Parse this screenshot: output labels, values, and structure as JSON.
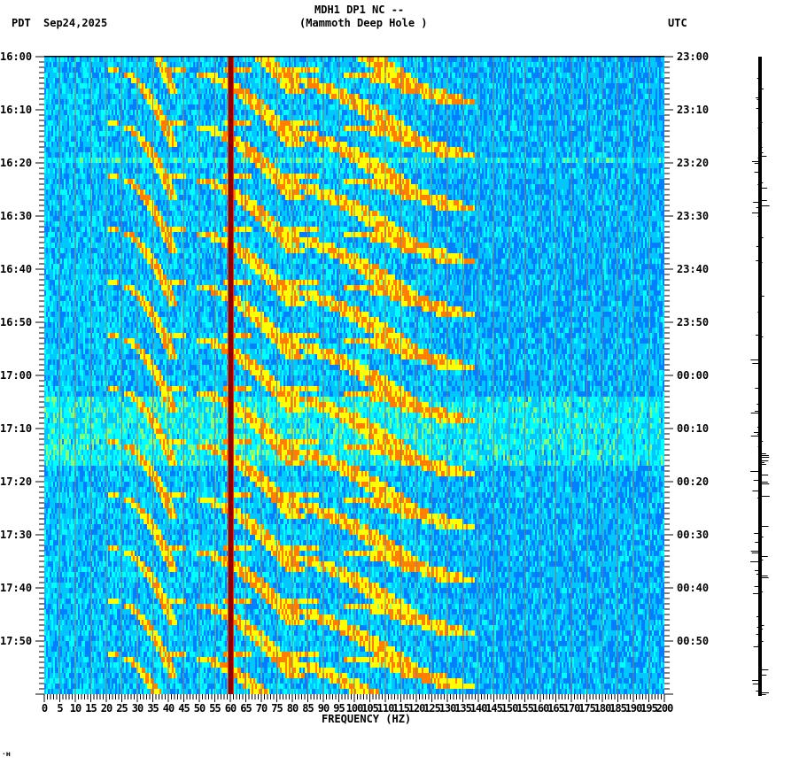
{
  "header": {
    "title_line1": "MDH1 DP1 NC --",
    "title_line2": "(Mammoth Deep Hole )",
    "left_tz": "PDT",
    "date": "Sep24,2025",
    "right_tz": "UTC"
  },
  "footer": {
    "xlabel": "FREQUENCY (HZ)",
    "corner_mark": "·ʜ"
  },
  "colors": {
    "background_noise": "#1f8fff",
    "grid_line": "#808080",
    "line_60hz": "#8b0000",
    "line_60hz_edge": "#ff3000",
    "arc_color": "#d8ff30",
    "arc_peak": "#ffd000",
    "trace": "#000000"
  },
  "chart_data": {
    "type": "heatmap",
    "title": "MDH1 DP1 NC -- (Mammoth Deep Hole )",
    "subtitle": "Spectrogram, Sep24,2025",
    "xlabel": "FREQUENCY (HZ)",
    "ylabel_left": "PDT",
    "ylabel_right": "UTC",
    "xlim": [
      0,
      200
    ],
    "x_tick_step": 5,
    "x_ticks": [
      0,
      5,
      10,
      15,
      20,
      25,
      30,
      35,
      40,
      45,
      50,
      55,
      60,
      65,
      70,
      75,
      80,
      85,
      90,
      95,
      100,
      105,
      110,
      115,
      120,
      125,
      130,
      135,
      140,
      145,
      150,
      155,
      160,
      165,
      170,
      175,
      180,
      185,
      190,
      195,
      200
    ],
    "y_ticks_left": [
      "16:00",
      "16:10",
      "16:20",
      "16:30",
      "16:40",
      "16:50",
      "17:00",
      "17:10",
      "17:20",
      "17:30",
      "17:40",
      "17:50"
    ],
    "y_ticks_right": [
      "23:00",
      "23:10",
      "23:20",
      "23:30",
      "23:40",
      "23:50",
      "00:00",
      "00:10",
      "00:20",
      "00:30",
      "00:40",
      "00:50"
    ],
    "time_range_minutes": 120,
    "minor_tick_minutes": 1,
    "grid": true,
    "features": [
      {
        "name": "60 Hz power line",
        "freq_hz": 60,
        "intensity": "max"
      },
      {
        "name": "gliding harmonic arcs (increasing frequency, repeated ~10 min cycles)",
        "freq_range_hz": [
          20,
          130
        ]
      },
      {
        "name": "broadband noise band",
        "time": "17:02-17:16"
      }
    ],
    "colormap": [
      "#0000ff",
      "#0080ff",
      "#00c8ff",
      "#00ffff",
      "#80ff80",
      "#ffff00",
      "#ff8000",
      "#ff0000",
      "#800000"
    ]
  },
  "seismogram": {
    "label": "seismogram trace"
  }
}
